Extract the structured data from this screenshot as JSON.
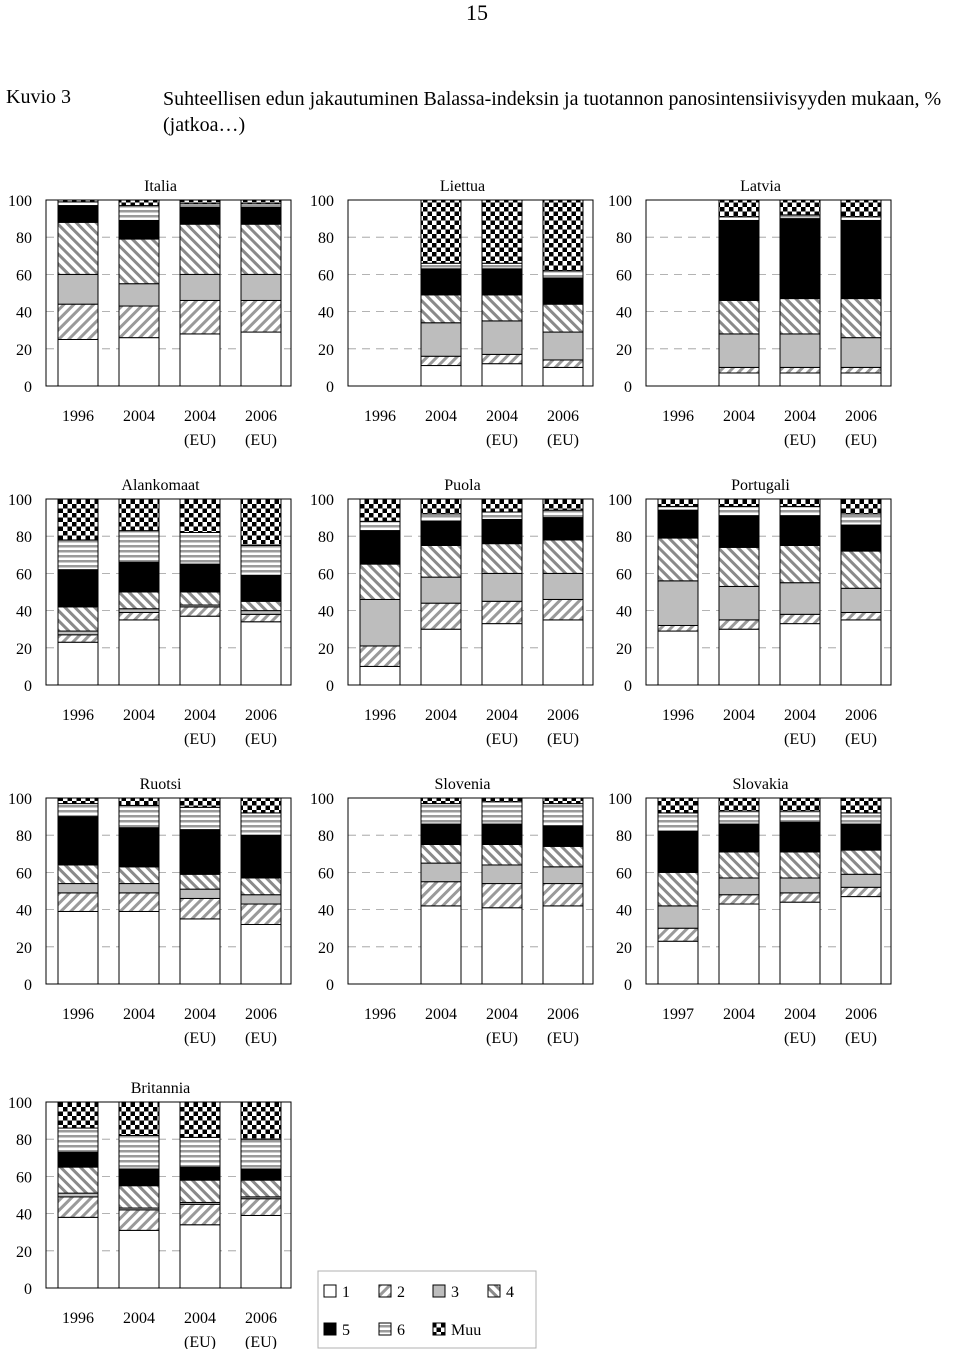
{
  "page_number": "15",
  "figure_label": "Kuvio 3",
  "figure_title": "Suhteellisen edun jakautuminen Balassa-indeksin ja tuotannon panosintensiivisyyden mukaan, % (jatkoa…)",
  "legend": [
    {
      "key": "1",
      "label": "1",
      "pattern": "white"
    },
    {
      "key": "2",
      "label": "2",
      "pattern": "diag-light"
    },
    {
      "key": "3",
      "label": "3",
      "pattern": "gray"
    },
    {
      "key": "4",
      "label": "4",
      "pattern": "diag-dark"
    },
    {
      "key": "5",
      "label": "5",
      "pattern": "black"
    },
    {
      "key": "6",
      "label": "6",
      "pattern": "horizontal"
    },
    {
      "key": "muu",
      "label": "Muu",
      "pattern": "checker"
    }
  ],
  "chart_data": [
    {
      "type": "bar",
      "stacked": true,
      "title": "Italia",
      "categories": [
        [
          "1996",
          ""
        ],
        [
          "2004",
          ""
        ],
        [
          "2004",
          "(EU)"
        ],
        [
          "2006",
          "(EU)"
        ]
      ],
      "ylim": [
        0,
        100
      ],
      "yticks": [
        0,
        20,
        40,
        60,
        80,
        100
      ],
      "grid": "dashed",
      "series": [
        {
          "name": "1",
          "values": [
            25,
            26,
            28,
            29
          ]
        },
        {
          "name": "2",
          "values": [
            19,
            17,
            18,
            17
          ]
        },
        {
          "name": "3",
          "values": [
            16,
            12,
            14,
            14
          ]
        },
        {
          "name": "4",
          "values": [
            28,
            24,
            27,
            27
          ]
        },
        {
          "name": "5",
          "values": [
            9,
            10,
            9,
            9
          ]
        },
        {
          "name": "6",
          "values": [
            2,
            8,
            2,
            2
          ]
        },
        {
          "name": "Muu",
          "values": [
            1,
            3,
            2,
            2
          ]
        }
      ]
    },
    {
      "type": "bar",
      "stacked": true,
      "title": "Liettua",
      "categories": [
        [
          "1996",
          ""
        ],
        [
          "2004",
          ""
        ],
        [
          "2004",
          "(EU)"
        ],
        [
          "2006",
          "(EU)"
        ]
      ],
      "ylim": [
        0,
        100
      ],
      "yticks": [
        0,
        20,
        40,
        60,
        80,
        100
      ],
      "grid": "dashed",
      "series": [
        {
          "name": "1",
          "values": [
            0,
            11,
            12,
            10
          ]
        },
        {
          "name": "2",
          "values": [
            0,
            5,
            5,
            4
          ]
        },
        {
          "name": "3",
          "values": [
            0,
            18,
            18,
            15
          ]
        },
        {
          "name": "4",
          "values": [
            0,
            15,
            14,
            15
          ]
        },
        {
          "name": "5",
          "values": [
            0,
            14,
            14,
            14
          ]
        },
        {
          "name": "6",
          "values": [
            0,
            3,
            3,
            4
          ]
        },
        {
          "name": "Muu",
          "values": [
            0,
            34,
            34,
            38
          ]
        }
      ]
    },
    {
      "type": "bar",
      "stacked": true,
      "title": "Latvia",
      "categories": [
        [
          "1996",
          ""
        ],
        [
          "2004",
          ""
        ],
        [
          "2004",
          "(EU)"
        ],
        [
          "2006",
          "(EU)"
        ]
      ],
      "ylim": [
        0,
        100
      ],
      "yticks": [
        0,
        20,
        40,
        60,
        80,
        100
      ],
      "grid": "dashed",
      "series": [
        {
          "name": "1",
          "values": [
            0,
            7,
            7,
            7
          ]
        },
        {
          "name": "2",
          "values": [
            0,
            3,
            3,
            3
          ]
        },
        {
          "name": "3",
          "values": [
            0,
            18,
            18,
            16
          ]
        },
        {
          "name": "4",
          "values": [
            0,
            18,
            19,
            21
          ]
        },
        {
          "name": "5",
          "values": [
            0,
            43,
            43,
            42
          ]
        },
        {
          "name": "6",
          "values": [
            0,
            2,
            2,
            2
          ]
        },
        {
          "name": "Muu",
          "values": [
            0,
            9,
            8,
            9
          ]
        }
      ]
    },
    {
      "type": "bar",
      "stacked": true,
      "title": "Alankomaat",
      "categories": [
        [
          "1996",
          ""
        ],
        [
          "2004",
          ""
        ],
        [
          "2004",
          "(EU)"
        ],
        [
          "2006",
          "(EU)"
        ]
      ],
      "ylim": [
        0,
        100
      ],
      "yticks": [
        0,
        20,
        40,
        60,
        80,
        100
      ],
      "grid": "dashed",
      "series": [
        {
          "name": "1",
          "values": [
            23,
            35,
            37,
            34
          ]
        },
        {
          "name": "2",
          "values": [
            4,
            4,
            5,
            4
          ]
        },
        {
          "name": "3",
          "values": [
            2,
            2,
            1,
            2
          ]
        },
        {
          "name": "4",
          "values": [
            13,
            9,
            7,
            5
          ]
        },
        {
          "name": "5",
          "values": [
            20,
            16,
            15,
            14
          ]
        },
        {
          "name": "6",
          "values": [
            16,
            17,
            17,
            16
          ]
        },
        {
          "name": "Muu",
          "values": [
            22,
            17,
            18,
            25
          ]
        }
      ]
    },
    {
      "type": "bar",
      "stacked": true,
      "title": "Puola",
      "categories": [
        [
          "1996",
          ""
        ],
        [
          "2004",
          ""
        ],
        [
          "2004",
          "(EU)"
        ],
        [
          "2006",
          "(EU)"
        ]
      ],
      "ylim": [
        0,
        100
      ],
      "yticks": [
        0,
        20,
        40,
        60,
        80,
        100
      ],
      "grid": "dashed",
      "series": [
        {
          "name": "1",
          "values": [
            10,
            30,
            33,
            35
          ]
        },
        {
          "name": "2",
          "values": [
            11,
            14,
            12,
            11
          ]
        },
        {
          "name": "3",
          "values": [
            25,
            14,
            15,
            14
          ]
        },
        {
          "name": "4",
          "values": [
            19,
            17,
            16,
            18
          ]
        },
        {
          "name": "5",
          "values": [
            18,
            13,
            13,
            12
          ]
        },
        {
          "name": "6",
          "values": [
            5,
            4,
            4,
            4
          ]
        },
        {
          "name": "Muu",
          "values": [
            12,
            8,
            7,
            6
          ]
        }
      ]
    },
    {
      "type": "bar",
      "stacked": true,
      "title": "Portugali",
      "categories": [
        [
          "1996",
          ""
        ],
        [
          "2004",
          ""
        ],
        [
          "2004",
          "(EU)"
        ],
        [
          "2006",
          "(EU)"
        ]
      ],
      "ylim": [
        0,
        100
      ],
      "yticks": [
        0,
        20,
        40,
        60,
        80,
        100
      ],
      "grid": "dashed",
      "series": [
        {
          "name": "1",
          "values": [
            29,
            30,
            33,
            35
          ]
        },
        {
          "name": "2",
          "values": [
            3,
            5,
            5,
            4
          ]
        },
        {
          "name": "3",
          "values": [
            24,
            18,
            17,
            13
          ]
        },
        {
          "name": "4",
          "values": [
            23,
            21,
            20,
            20
          ]
        },
        {
          "name": "5",
          "values": [
            15,
            17,
            16,
            14
          ]
        },
        {
          "name": "6",
          "values": [
            2,
            5,
            5,
            6
          ]
        },
        {
          "name": "Muu",
          "values": [
            4,
            4,
            4,
            8
          ]
        }
      ]
    },
    {
      "type": "bar",
      "stacked": true,
      "title": "Ruotsi",
      "categories": [
        [
          "1996",
          ""
        ],
        [
          "2004",
          ""
        ],
        [
          "2004",
          "(EU)"
        ],
        [
          "2006",
          "(EU)"
        ]
      ],
      "ylim": [
        0,
        100
      ],
      "yticks": [
        0,
        20,
        40,
        60,
        80,
        100
      ],
      "grid": "dashed",
      "series": [
        {
          "name": "1",
          "values": [
            39,
            39,
            35,
            32
          ]
        },
        {
          "name": "2",
          "values": [
            10,
            10,
            11,
            11
          ]
        },
        {
          "name": "3",
          "values": [
            5,
            5,
            5,
            5
          ]
        },
        {
          "name": "4",
          "values": [
            10,
            9,
            8,
            9
          ]
        },
        {
          "name": "5",
          "values": [
            26,
            21,
            24,
            23
          ]
        },
        {
          "name": "6",
          "values": [
            7,
            12,
            12,
            12
          ]
        },
        {
          "name": "Muu",
          "values": [
            3,
            4,
            5,
            8
          ]
        }
      ]
    },
    {
      "type": "bar",
      "stacked": true,
      "title": "Slovenia",
      "categories": [
        [
          "1996",
          ""
        ],
        [
          "2004",
          ""
        ],
        [
          "2004",
          "(EU)"
        ],
        [
          "2006",
          "(EU)"
        ]
      ],
      "ylim": [
        0,
        100
      ],
      "yticks": [
        0,
        20,
        40,
        60,
        80,
        100
      ],
      "grid": "dashed",
      "series": [
        {
          "name": "1",
          "values": [
            0,
            42,
            41,
            42
          ]
        },
        {
          "name": "2",
          "values": [
            0,
            13,
            13,
            12
          ]
        },
        {
          "name": "3",
          "values": [
            0,
            10,
            10,
            9
          ]
        },
        {
          "name": "4",
          "values": [
            0,
            10,
            11,
            11
          ]
        },
        {
          "name": "5",
          "values": [
            0,
            11,
            11,
            11
          ]
        },
        {
          "name": "6",
          "values": [
            0,
            11,
            12,
            12
          ]
        },
        {
          "name": "Muu",
          "values": [
            0,
            3,
            2,
            3
          ]
        }
      ]
    },
    {
      "type": "bar",
      "stacked": true,
      "title": "Slovakia",
      "categories": [
        [
          "1997",
          ""
        ],
        [
          "2004",
          ""
        ],
        [
          "2004",
          "(EU)"
        ],
        [
          "2006",
          "(EU)"
        ]
      ],
      "ylim": [
        0,
        100
      ],
      "yticks": [
        0,
        20,
        40,
        60,
        80,
        100
      ],
      "grid": "dashed",
      "series": [
        {
          "name": "1",
          "values": [
            23,
            43,
            44,
            47
          ]
        },
        {
          "name": "2",
          "values": [
            7,
            5,
            5,
            5
          ]
        },
        {
          "name": "3",
          "values": [
            12,
            9,
            8,
            7
          ]
        },
        {
          "name": "4",
          "values": [
            18,
            14,
            14,
            13
          ]
        },
        {
          "name": "5",
          "values": [
            22,
            15,
            16,
            14
          ]
        },
        {
          "name": "6",
          "values": [
            10,
            7,
            6,
            6
          ]
        },
        {
          "name": "Muu",
          "values": [
            8,
            7,
            7,
            8
          ]
        }
      ]
    },
    {
      "type": "bar",
      "stacked": true,
      "title": "Britannia",
      "categories": [
        [
          "1996",
          ""
        ],
        [
          "2004",
          ""
        ],
        [
          "2004",
          "(EU)"
        ],
        [
          "2006",
          "(EU)"
        ]
      ],
      "ylim": [
        0,
        100
      ],
      "yticks": [
        0,
        20,
        40,
        60,
        80,
        100
      ],
      "grid": "dashed",
      "series": [
        {
          "name": "1",
          "values": [
            38,
            31,
            34,
            39
          ]
        },
        {
          "name": "2",
          "values": [
            11,
            11,
            11,
            9
          ]
        },
        {
          "name": "3",
          "values": [
            2,
            1,
            1,
            1
          ]
        },
        {
          "name": "4",
          "values": [
            14,
            12,
            12,
            9
          ]
        },
        {
          "name": "5",
          "values": [
            8,
            9,
            7,
            6
          ]
        },
        {
          "name": "6",
          "values": [
            13,
            18,
            16,
            16
          ]
        },
        {
          "name": "Muu",
          "values": [
            14,
            18,
            19,
            20
          ]
        }
      ]
    }
  ]
}
